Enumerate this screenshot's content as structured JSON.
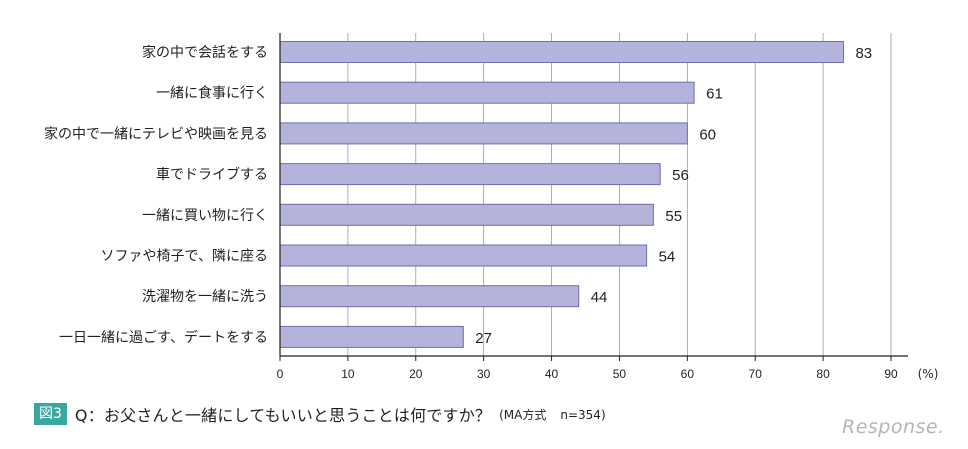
{
  "chart_data": {
    "type": "bar",
    "orientation": "horizontal",
    "categories": [
      "家の中で会話をする",
      "一緒に食事に行く",
      "家の中で一緒にテレビや映画を見る",
      "車でドライブする",
      "一緒に買い物に行く",
      "ソファや椅子で、隣に座る",
      "洗濯物を一緒に洗う",
      "一日一緒に過ごす、デートをする"
    ],
    "values": [
      83,
      61,
      60,
      56,
      55,
      54,
      44,
      27
    ],
    "xlim": [
      0,
      90
    ],
    "xticks": [
      0,
      10,
      20,
      30,
      40,
      50,
      60,
      70,
      80,
      90
    ],
    "xtick_labels": [
      "0",
      "10",
      "20",
      "30",
      "40",
      "50",
      "60",
      "70",
      "80",
      "90"
    ],
    "unit_label": "(%)",
    "grid": true,
    "bar_color": "#b3b3dc",
    "bar_edge_color": "#6e6ea8"
  },
  "caption": {
    "figure_label": "図3",
    "question": "Q：お父さんと一緒にしてもいいと思うことは何ですか？",
    "note": "(MA方式",
    "sample": "n=354)"
  },
  "watermark": "Response."
}
